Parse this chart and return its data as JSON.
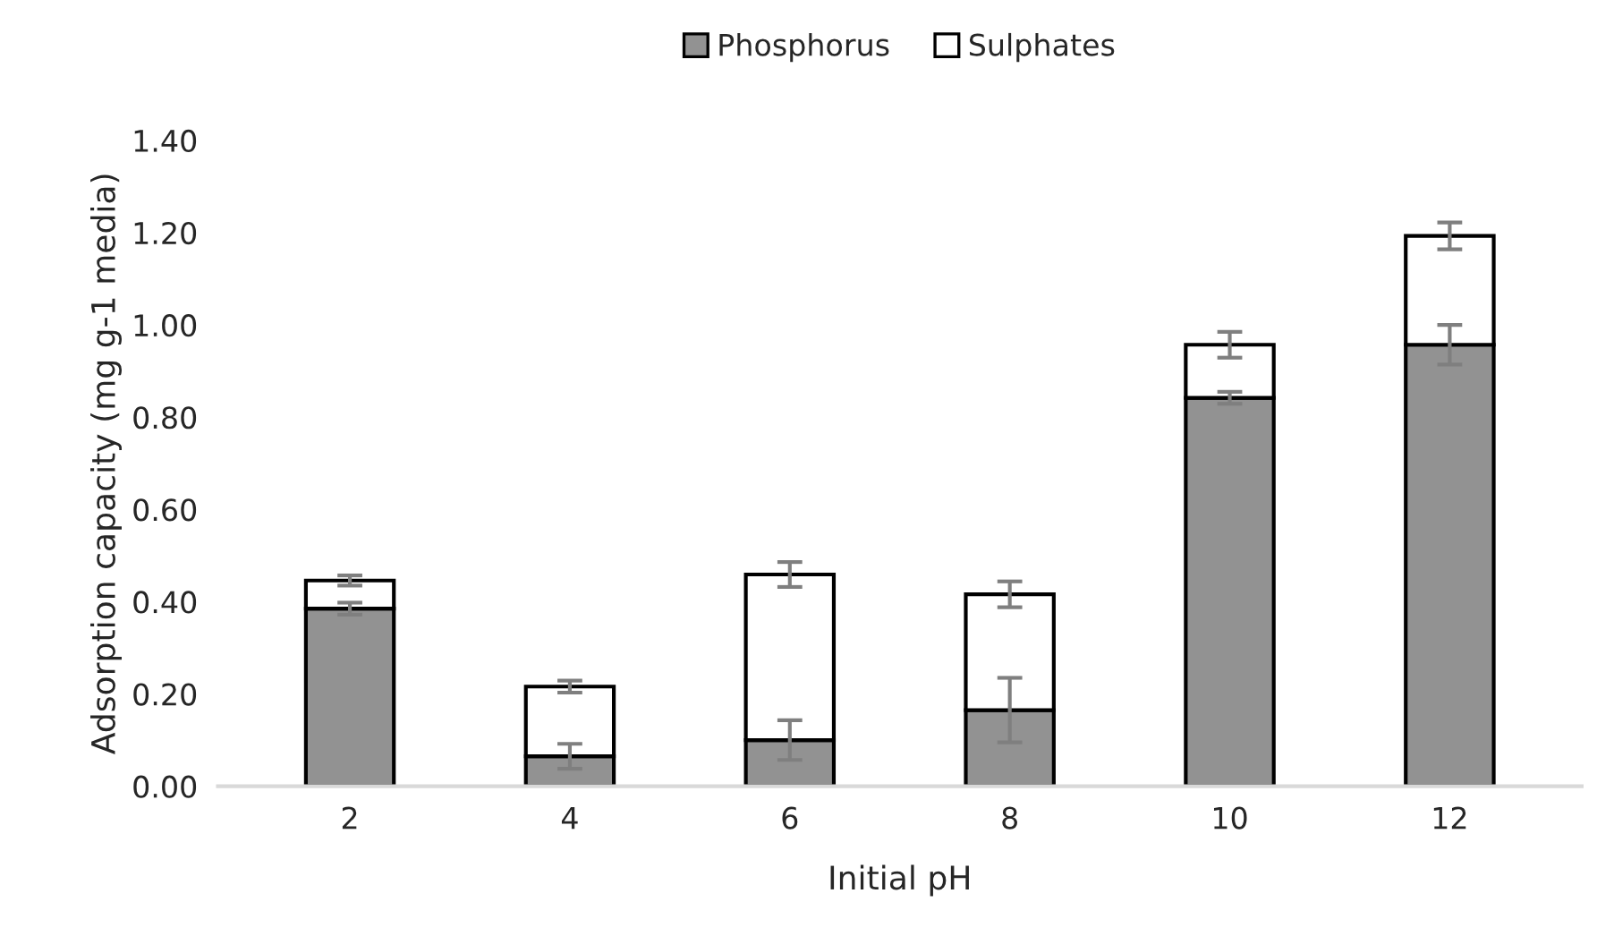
{
  "chart_data": {
    "type": "bar",
    "stacked": true,
    "xlabel": "Initial pH",
    "ylabel": "Adsorption capacity (mg g-1 media)",
    "categories": [
      "2",
      "4",
      "6",
      "8",
      "10",
      "12"
    ],
    "series": [
      {
        "name": "Phosphorus",
        "color": "#929292",
        "values": [
          0.385,
          0.065,
          0.1,
          0.165,
          0.842,
          0.957
        ],
        "errors": [
          0.013,
          0.027,
          0.043,
          0.07,
          0.013,
          0.043
        ]
      },
      {
        "name": "Sulphates",
        "color": "#ffffff",
        "values": [
          0.061,
          0.151,
          0.359,
          0.251,
          0.115,
          0.236
        ],
        "errors": [
          0.011,
          0.013,
          0.027,
          0.028,
          0.028,
          0.029
        ]
      }
    ],
    "ylim": [
      0,
      1.4
    ],
    "yticks": [
      {
        "value": 0,
        "label": "0.00"
      },
      {
        "value": 0.2,
        "label": "0.20"
      },
      {
        "value": 0.4,
        "label": "0.40"
      },
      {
        "value": 0.6,
        "label": "0.60"
      },
      {
        "value": 0.8,
        "label": "0.80"
      },
      {
        "value": 1.0,
        "label": "1.00"
      },
      {
        "value": 1.2,
        "label": "1.20"
      },
      {
        "value": 1.4,
        "label": "1.40"
      }
    ],
    "grid": false,
    "legend": "top"
  }
}
